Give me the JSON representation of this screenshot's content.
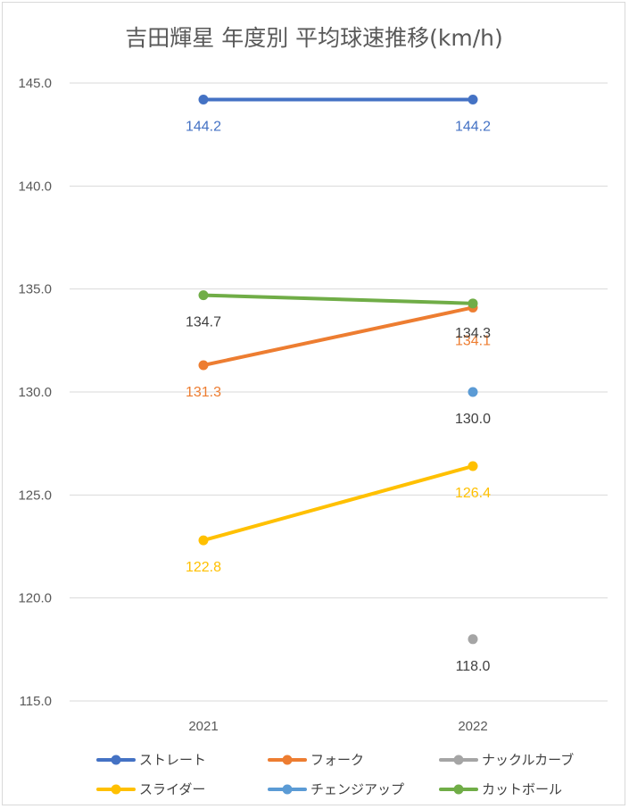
{
  "chart_data": {
    "type": "line",
    "title": "吉田輝星 年度別 平均球速推移(km/h)",
    "xlabel": "",
    "ylabel": "",
    "categories": [
      "2021",
      "2022"
    ],
    "ylim": [
      115.0,
      145.0
    ],
    "yticks": [
      "145.0",
      "140.0",
      "135.0",
      "130.0",
      "125.0",
      "120.0",
      "115.0"
    ],
    "grid": true,
    "legend_position": "bottom",
    "series": [
      {
        "name": "ストレート",
        "color": "#4472c4",
        "values": [
          144.2,
          144.2
        ],
        "labels": [
          "144.2",
          "144.2"
        ],
        "label_color": "#4472c4"
      },
      {
        "name": "フォーク",
        "color": "#ed7d31",
        "values": [
          131.3,
          134.1
        ],
        "labels": [
          "131.3",
          "134.1"
        ],
        "label_color": "#ed7d31"
      },
      {
        "name": "ナックルカーブ",
        "color": "#a5a5a5",
        "values": [
          null,
          118.0
        ],
        "labels": [
          null,
          "118.0"
        ],
        "label_color": "#404040"
      },
      {
        "name": "スライダー",
        "color": "#ffc000",
        "values": [
          122.8,
          126.4
        ],
        "labels": [
          "122.8",
          "126.4"
        ],
        "label_color": "#ffc000"
      },
      {
        "name": "チェンジアップ",
        "color": "#5b9bd5",
        "values": [
          null,
          130.0
        ],
        "labels": [
          null,
          "130.0"
        ],
        "label_color": "#404040"
      },
      {
        "name": "カットボール",
        "color": "#70ad47",
        "values": [
          134.7,
          134.3
        ],
        "labels": [
          "134.7",
          "134.3"
        ],
        "label_color": "#404040"
      }
    ]
  }
}
